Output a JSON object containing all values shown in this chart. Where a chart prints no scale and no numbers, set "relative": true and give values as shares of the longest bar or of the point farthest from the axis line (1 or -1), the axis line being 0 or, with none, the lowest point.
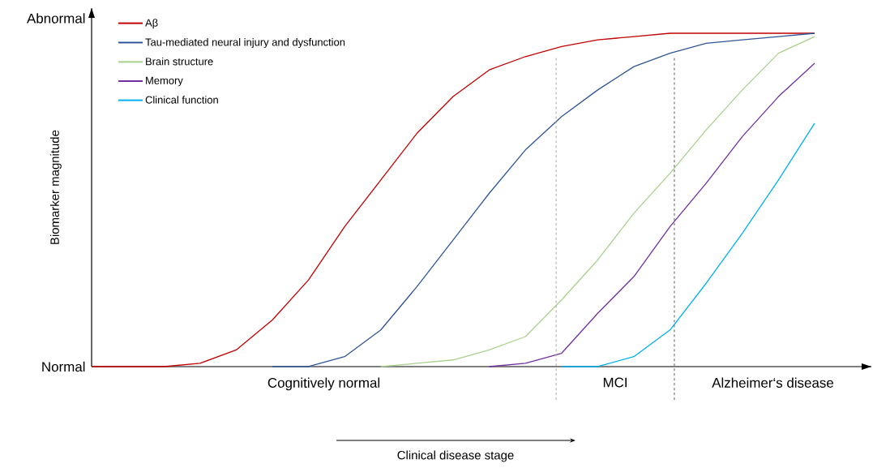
{
  "chart_data": {
    "type": "line",
    "ylabel": "Biomarker magnitude",
    "categories": [
      null,
      null,
      null,
      null,
      null,
      null,
      null,
      null,
      null,
      null,
      null,
      null,
      null,
      null,
      null,
      null,
      null,
      null,
      null,
      null,
      null
    ],
    "relative": true,
    "legend": "top left",
    "line_style": "solid",
    "series": [
      {
        "name": "Aβ",
        "color": "#c00000",
        "values": [
          0,
          0,
          0,
          0.01,
          0.05,
          0.14,
          0.26,
          0.42,
          0.56,
          0.7,
          0.81,
          0.89,
          0.93,
          0.96,
          0.98,
          0.99,
          1,
          1,
          1,
          1,
          1
        ]
      },
      {
        "name": "Tau-mediated neural injury and dysfunction",
        "color": "#2f5597",
        "values": [
          null,
          null,
          null,
          null,
          null,
          0,
          0,
          0.03,
          0.11,
          0.24,
          0.38,
          0.52,
          0.65,
          0.75,
          0.83,
          0.9,
          0.94,
          0.97,
          0.98,
          0.99,
          1
        ]
      },
      {
        "name": "Brain structure",
        "color": "#a9d18e",
        "values": [
          null,
          null,
          null,
          null,
          null,
          null,
          null,
          null,
          0,
          0.01,
          0.02,
          0.05,
          0.09,
          0.2,
          0.32,
          0.46,
          0.58,
          0.71,
          0.83,
          0.94,
          0.99
        ]
      },
      {
        "name": "Memory",
        "color": "#7030a0",
        "values": [
          null,
          null,
          null,
          null,
          null,
          null,
          null,
          null,
          null,
          null,
          null,
          0,
          0.01,
          0.04,
          0.16,
          0.27,
          0.42,
          0.55,
          0.69,
          0.81,
          0.91
        ]
      },
      {
        "name": "Clinical function",
        "color": "#00b0f0",
        "values": [
          null,
          null,
          null,
          null,
          null,
          null,
          null,
          null,
          null,
          null,
          null,
          null,
          null,
          0,
          0,
          0.03,
          0.11,
          0.25,
          0.4,
          0.56,
          0.73
        ]
      }
    ],
    "annotations": [
      "Normal",
      "Abnormal",
      "Cognitively normal",
      "MCI",
      "Alzheimer‘s disease",
      "Clinical disease stage"
    ]
  }
}
